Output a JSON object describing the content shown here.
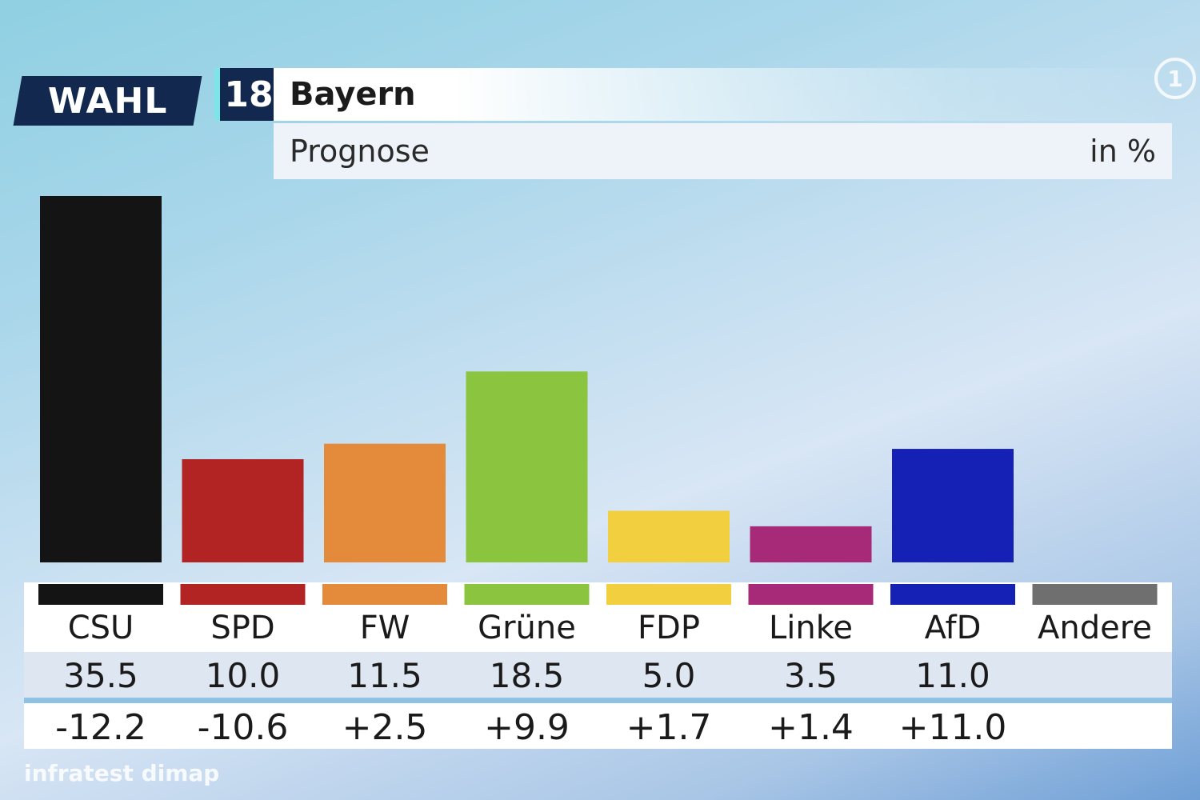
{
  "header": {
    "brand": "WAHL",
    "year": "18",
    "title": "Bayern",
    "subtitle": "Prognose",
    "unit": "in %",
    "channel_logo": "1"
  },
  "source": "infratest dimap",
  "colors": {
    "CSU": "#141414",
    "SPD": "#b22424",
    "FW": "#e38a3b",
    "Grüne": "#8bc43f",
    "FDP": "#f2cf3f",
    "Linke": "#a72a78",
    "AfD": "#1521b4",
    "Andere": "#6f6f6f"
  },
  "chart_data": {
    "type": "bar",
    "title": "Bayern",
    "subtitle": "Prognose",
    "unit": "in %",
    "categories": [
      "CSU",
      "SPD",
      "FW",
      "Grüne",
      "FDP",
      "Linke",
      "AfD",
      "Andere"
    ],
    "values": [
      35.5,
      10.0,
      11.5,
      18.5,
      5.0,
      3.5,
      11.0,
      null
    ],
    "value_labels": [
      "35.5",
      "10.0",
      "11.5",
      "18.5",
      "5.0",
      "3.5",
      "11.0",
      ""
    ],
    "changes": [
      "-12.2",
      "-10.6",
      "+2.5",
      "+9.9",
      "+1.7",
      "+1.4",
      "+11.0",
      ""
    ],
    "ylim": [
      0,
      35.5
    ],
    "grid": false,
    "legend": "none"
  }
}
